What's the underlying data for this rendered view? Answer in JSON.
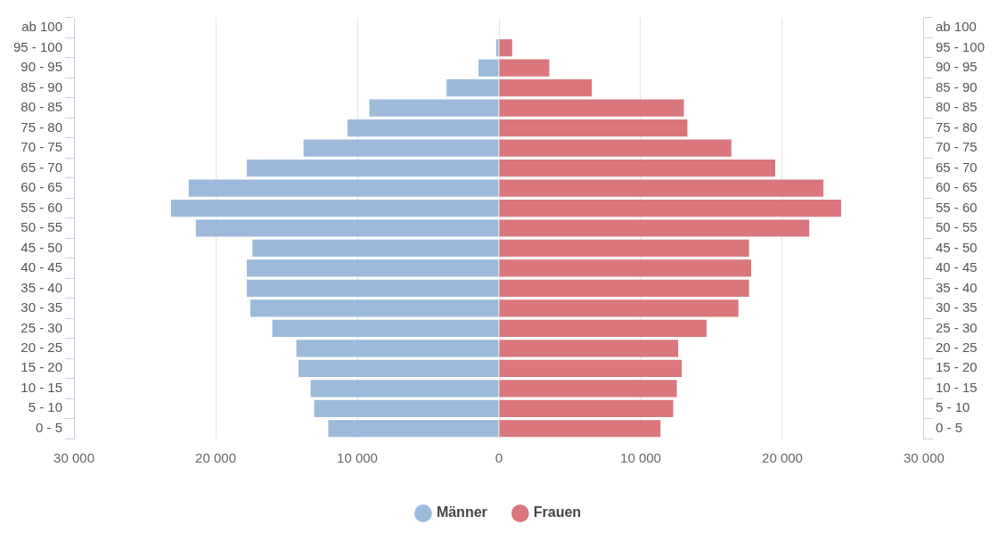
{
  "chart_data": {
    "type": "bar",
    "orientation": "horizontal",
    "stacked": true,
    "categories": [
      "ab 100",
      "95 - 100",
      "90 - 95",
      "85 - 90",
      "80 - 85",
      "75 - 80",
      "70 - 75",
      "65 - 70",
      "60 - 65",
      "55 - 60",
      "50 - 55",
      "45 - 50",
      "40 - 45",
      "35 - 40",
      "30 - 35",
      "25 - 30",
      "20 - 25",
      "15 - 20",
      "10 - 15",
      "5 - 10",
      "0 - 5"
    ],
    "series": [
      {
        "name": "Männer",
        "color": "#9dbadb",
        "values": [
          0,
          -200,
          -1450,
          -3700,
          -9150,
          -10700,
          -13800,
          -17800,
          -21900,
          -23150,
          -21400,
          -17400,
          -17800,
          -17800,
          -17550,
          -16000,
          -14300,
          -14150,
          -13300,
          -13050,
          -12050
        ]
      },
      {
        "name": "Frauen",
        "color": "#d9777c",
        "values": [
          0,
          930,
          3550,
          6550,
          13050,
          13300,
          16400,
          19500,
          22900,
          24150,
          21900,
          17650,
          17800,
          17650,
          16900,
          14650,
          12650,
          12900,
          12550,
          12300,
          11400
        ]
      }
    ],
    "xlim": [
      -30000,
      30000
    ],
    "xticks": [
      {
        "value": -30000,
        "label": "30 000"
      },
      {
        "value": -20000,
        "label": "20 000"
      },
      {
        "value": -10000,
        "label": "10 000"
      },
      0,
      {
        "value": 10000,
        "label": "10 000"
      },
      {
        "value": 20000,
        "label": "20 000"
      },
      {
        "value": 30000,
        "label": "30 000"
      }
    ],
    "grid": "x",
    "legend": "bottom"
  }
}
